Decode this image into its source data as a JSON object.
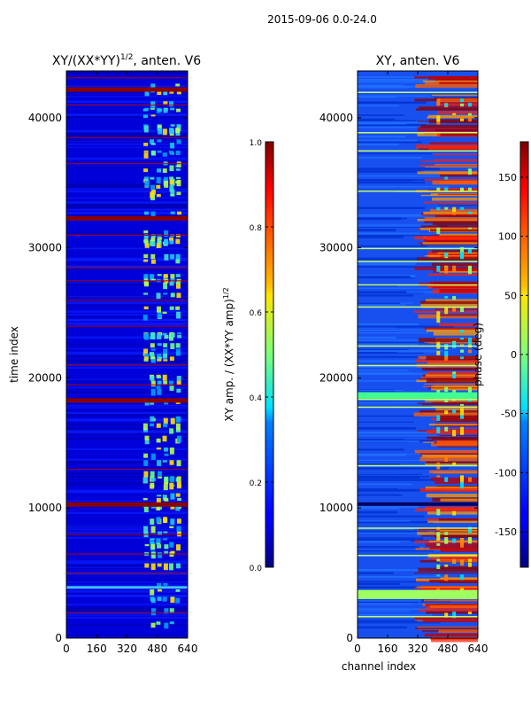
{
  "suptitle": "2015-09-06 0.0-24.0",
  "chart_data": [
    {
      "type": "heatmap",
      "title_main": "XY/(XX*YY)",
      "title_exp": "1/2",
      "title_suffix": ", anten. V6",
      "xlabel": "",
      "ylabel": "time index",
      "xlim": [
        0,
        640
      ],
      "ylim": [
        0,
        43600
      ],
      "xticks": [
        "0",
        "160",
        "320",
        "480",
        "640"
      ],
      "yticks": [
        "0",
        "10000",
        "20000",
        "30000",
        "40000"
      ],
      "colorbar": {
        "label_main": "XY amp. / (XX*YY amp)",
        "label_exp": "1/2",
        "range": [
          0.0,
          1.0
        ],
        "ticks": [
          "0.0",
          "0.2",
          "0.4",
          "0.6",
          "0.8",
          "1.0"
        ],
        "colormap": "jet"
      },
      "notes": "Amplitude ratio mostly low (~0.1); enhanced values 0.4-0.7 between channels ~400-610; saturated horizontal flag rows near time indices 10300, 18200, 32300, 42200."
    },
    {
      "type": "heatmap",
      "title": "XY, anten. V6",
      "xlabel": "channel index",
      "ylabel": "",
      "xlim": [
        0,
        640
      ],
      "ylim": [
        0,
        43600
      ],
      "xticks": [
        "0",
        "160",
        "320",
        "480",
        "640"
      ],
      "yticks": [
        "0",
        "10000",
        "20000",
        "30000",
        "40000"
      ],
      "colorbar": {
        "label": "phase (deg)",
        "range": [
          -180,
          180
        ],
        "ticks": [
          "-150",
          "-100",
          "-50",
          "0",
          "50",
          "100",
          "150"
        ],
        "colormap": "jet"
      },
      "notes": "Phase mostly around -150 deg with wrapping bands near +170 deg above channel ~380; horizontal flagged rows appear near +30 deg."
    }
  ]
}
